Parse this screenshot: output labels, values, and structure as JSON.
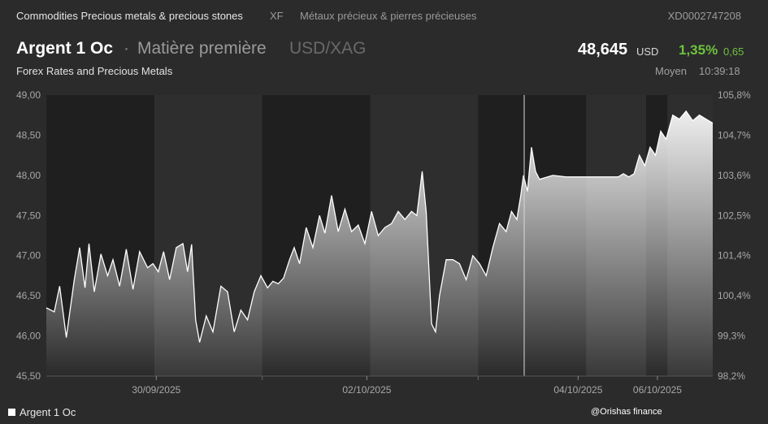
{
  "topbar": {
    "category": "Commodities Precious metals & precious stones",
    "exchange": "XF",
    "category_fr": "Métaux précieux & pierres précieuses",
    "isin": "XD0002747208"
  },
  "header": {
    "name": "Argent 1 Oc",
    "separator": "·",
    "type": "Matière première",
    "pair": "USD/XAG",
    "subtitle": "Forex Rates and Precious Metals",
    "price": "48,645",
    "currency": "USD",
    "change_pct": "1,35%",
    "change_abs": "0,65",
    "moyen_label": "Moyen",
    "time": "10:39:18"
  },
  "legend": {
    "label": "Argent 1 Oc"
  },
  "credit": "@Orishas finance",
  "chart_data": {
    "type": "area",
    "ylim": [
      45.5,
      49.0
    ],
    "yticks": [
      "49,00",
      "48,50",
      "48,00",
      "47,50",
      "47,00",
      "46,50",
      "46,00",
      "45,50"
    ],
    "yticks_right": [
      "105,8%",
      "104,7%",
      "103,6%",
      "102,5%",
      "101,4%",
      "100,4%",
      "99,3%",
      "98,2%"
    ],
    "xticks": [
      {
        "label": "30/09/2025",
        "pos": 0.165
      },
      {
        "label": "02/10/2025",
        "pos": 0.481
      },
      {
        "label": "04/10/2025",
        "pos": 0.798
      },
      {
        "label": "06/10/2025",
        "pos": 0.917
      }
    ],
    "x": [
      0.0,
      0.012,
      0.02,
      0.03,
      0.042,
      0.05,
      0.058,
      0.064,
      0.072,
      0.082,
      0.092,
      0.1,
      0.11,
      0.12,
      0.13,
      0.14,
      0.152,
      0.16,
      0.168,
      0.176,
      0.185,
      0.195,
      0.205,
      0.212,
      0.218,
      0.224,
      0.23,
      0.24,
      0.25,
      0.262,
      0.272,
      0.282,
      0.292,
      0.302,
      0.312,
      0.322,
      0.332,
      0.34,
      0.348,
      0.356,
      0.365,
      0.372,
      0.38,
      0.39,
      0.4,
      0.41,
      0.418,
      0.428,
      0.438,
      0.448,
      0.458,
      0.468,
      0.478,
      0.488,
      0.498,
      0.508,
      0.518,
      0.528,
      0.538,
      0.548,
      0.556,
      0.564,
      0.57,
      0.578,
      0.584,
      0.59,
      0.6,
      0.61,
      0.62,
      0.63,
      0.64,
      0.65,
      0.66,
      0.67,
      0.68,
      0.69,
      0.698,
      0.706,
      0.712,
      0.716,
      0.722,
      0.728,
      0.734,
      0.74,
      0.76,
      0.78,
      0.8,
      0.82,
      0.84,
      0.85,
      0.858,
      0.866,
      0.874,
      0.882,
      0.89,
      0.898,
      0.906,
      0.914,
      0.922,
      0.93,
      0.94,
      0.95,
      0.96,
      0.97,
      0.98,
      0.99,
      1.0
    ],
    "y": [
      46.35,
      46.3,
      46.62,
      45.98,
      46.7,
      47.1,
      46.6,
      47.15,
      46.55,
      47.02,
      46.75,
      46.95,
      46.62,
      47.08,
      46.58,
      47.05,
      46.85,
      46.9,
      46.8,
      47.05,
      46.7,
      47.1,
      47.15,
      46.8,
      47.14,
      46.2,
      45.92,
      46.25,
      46.05,
      46.62,
      46.55,
      46.05,
      46.32,
      46.2,
      46.55,
      46.75,
      46.6,
      46.68,
      46.65,
      46.72,
      46.95,
      47.1,
      46.9,
      47.35,
      47.1,
      47.5,
      47.28,
      47.75,
      47.3,
      47.58,
      47.3,
      47.38,
      47.15,
      47.55,
      47.25,
      47.35,
      47.4,
      47.55,
      47.45,
      47.55,
      47.5,
      48.05,
      47.55,
      46.15,
      46.05,
      46.5,
      46.95,
      46.95,
      46.9,
      46.7,
      47.0,
      46.9,
      46.75,
      47.1,
      47.4,
      47.3,
      47.55,
      47.45,
      47.75,
      48.0,
      47.8,
      48.35,
      48.05,
      47.95,
      48.0,
      47.98,
      47.98,
      47.98,
      47.98,
      47.98,
      47.98,
      48.02,
      47.98,
      48.02,
      48.25,
      48.12,
      48.35,
      48.25,
      48.55,
      48.45,
      48.75,
      48.7,
      48.8,
      48.68,
      48.75,
      48.7,
      48.65
    ]
  }
}
